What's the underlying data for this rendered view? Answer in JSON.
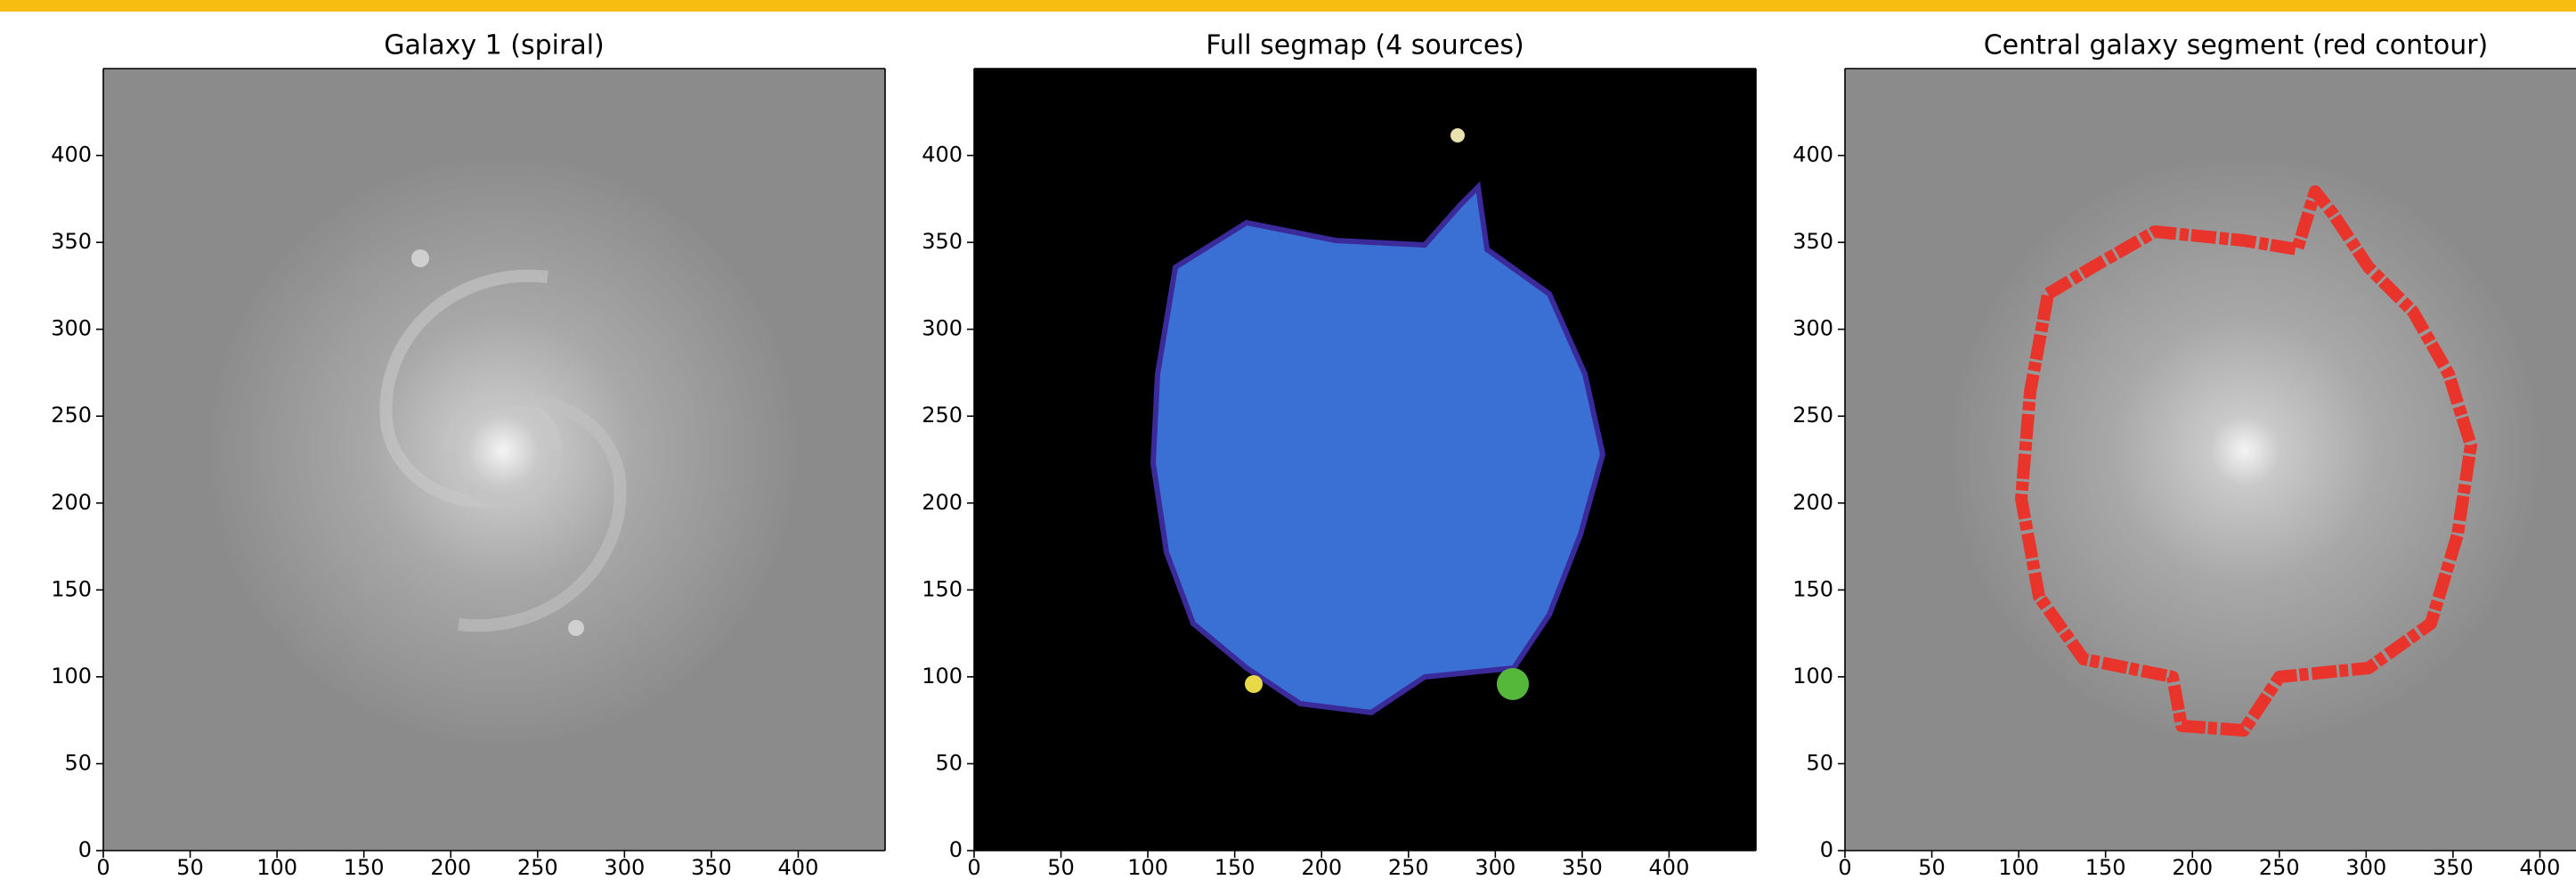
{
  "chart_data": [
    {
      "type": "image",
      "title": "Galaxy 1 (spiral)",
      "xlim": [
        0,
        450
      ],
      "ylim": [
        0,
        450
      ],
      "xticks": [
        0,
        50,
        100,
        150,
        200,
        250,
        300,
        350,
        400
      ],
      "yticks": [
        0,
        50,
        100,
        150,
        200,
        250,
        300,
        350,
        400
      ]
    },
    {
      "type": "image",
      "title": "Full segmap (4 sources)",
      "xlim": [
        0,
        450
      ],
      "ylim": [
        0,
        450
      ],
      "xticks": [
        0,
        50,
        100,
        150,
        200,
        250,
        300,
        350,
        400
      ],
      "yticks": [
        0,
        50,
        100,
        150,
        200,
        250,
        300,
        350,
        400
      ]
    },
    {
      "type": "image",
      "title": "Central galaxy segment (red contour)",
      "xlim": [
        0,
        450
      ],
      "ylim": [
        0,
        450
      ],
      "xticks": [
        0,
        50,
        100,
        150,
        200,
        250,
        300,
        350,
        400
      ],
      "yticks": [
        0,
        50,
        100,
        150,
        200,
        250,
        300,
        350,
        400
      ]
    }
  ]
}
